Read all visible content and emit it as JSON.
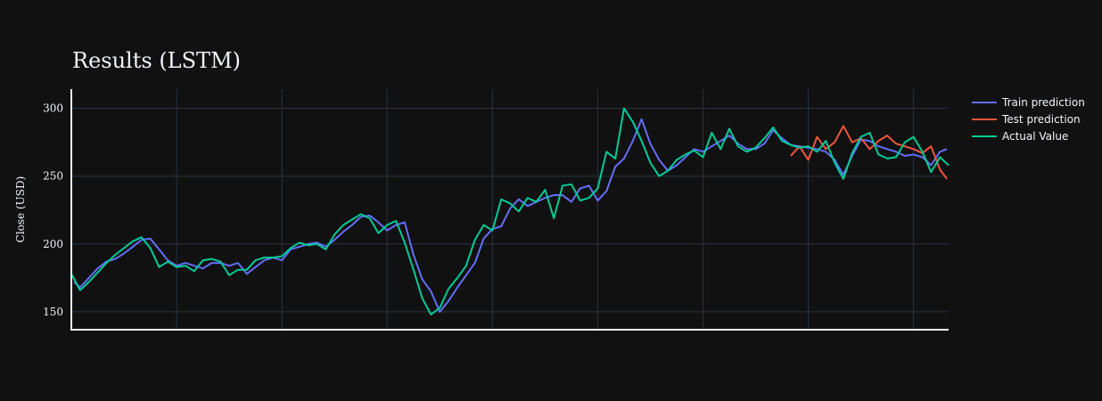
{
  "colors": {
    "background": "#111111",
    "grid": "#283442",
    "axis": "#f2f5fa",
    "train": "#636efa",
    "test": "#EF553B",
    "actual": "#00cc96"
  },
  "chart_data": {
    "type": "line",
    "title": "Results (LSTM)",
    "xlabel": "",
    "ylabel": "Close (USD)",
    "xlim": [
      0,
      100
    ],
    "ylim": [
      136.8,
      314.2
    ],
    "yticks": [
      150,
      200,
      250,
      300
    ],
    "xgrid": [
      12,
      24,
      36,
      48,
      60,
      72,
      84,
      96
    ],
    "grid": true,
    "legend_position": "top-right",
    "series": [
      {
        "name": "Train prediction",
        "color": "#636efa",
        "x": [
          0.3,
          1,
          2,
          3,
          4,
          5,
          6,
          7,
          8,
          9,
          10,
          11,
          12,
          13,
          14,
          15,
          16,
          17,
          18,
          19,
          20,
          21,
          22,
          23,
          24,
          25,
          26,
          27,
          28,
          29,
          30,
          31,
          32,
          33,
          34,
          35,
          36,
          37,
          38,
          39,
          40,
          41,
          42,
          43,
          44,
          45,
          46,
          47,
          48,
          49,
          50,
          51,
          52,
          53,
          54,
          55,
          56,
          57,
          58,
          59,
          60,
          61,
          62,
          63,
          64,
          65,
          66,
          67,
          68,
          69,
          70,
          71,
          72,
          73,
          74,
          75,
          76,
          77,
          78,
          79,
          80,
          81,
          82,
          83,
          84,
          85,
          86,
          87,
          88,
          89,
          90,
          91,
          92,
          93,
          94,
          95,
          96,
          97,
          98,
          99,
          99.8
        ],
        "y": [
          172,
          168,
          175,
          182,
          187,
          189,
          193,
          198,
          203,
          204,
          196,
          188,
          184,
          186,
          184,
          182,
          186,
          186,
          184,
          186,
          178,
          183,
          188,
          190,
          188,
          196,
          198,
          200,
          201,
          198,
          203,
          209,
          214,
          220,
          221,
          216,
          210,
          214,
          216,
          192,
          174,
          165,
          150,
          158,
          168,
          177,
          186,
          204,
          211,
          213,
          226,
          233,
          228,
          231,
          234,
          236,
          236,
          231,
          241,
          243,
          232,
          239,
          257,
          263,
          276,
          292,
          274,
          262,
          254,
          258,
          264,
          270,
          268,
          272,
          276,
          280,
          274,
          270,
          270,
          274,
          284,
          278,
          273,
          272,
          271,
          270,
          268,
          262,
          251,
          265,
          277,
          276,
          272,
          270,
          268,
          265,
          266,
          264,
          258,
          268,
          270
        ]
      },
      {
        "name": "Test prediction",
        "color": "#EF553B",
        "x": [
          82,
          83,
          84,
          85,
          86,
          87,
          88,
          89,
          90,
          91,
          92,
          93,
          94,
          95,
          96,
          97,
          98,
          99,
          99.8
        ],
        "y": [
          265,
          272,
          262,
          279,
          270,
          275,
          287,
          275,
          278,
          270,
          276,
          280,
          274,
          272,
          270,
          267,
          272,
          255,
          248
        ]
      },
      {
        "name": "Actual Value",
        "color": "#00cc96",
        "x": [
          0,
          1,
          2,
          3,
          4,
          5,
          6,
          7,
          8,
          9,
          10,
          11,
          12,
          13,
          14,
          15,
          16,
          17,
          18,
          19,
          20,
          21,
          22,
          23,
          24,
          25,
          26,
          27,
          28,
          29,
          30,
          31,
          32,
          33,
          34,
          35,
          36,
          37,
          38,
          39,
          40,
          41,
          42,
          43,
          44,
          45,
          46,
          47,
          48,
          49,
          50,
          51,
          52,
          53,
          54,
          55,
          56,
          57,
          58,
          59,
          60,
          61,
          62,
          63,
          64,
          65,
          66,
          67,
          68,
          69,
          70,
          71,
          72,
          73,
          74,
          75,
          76,
          77,
          78,
          79,
          80,
          81,
          82,
          83,
          84,
          85,
          86,
          87,
          88,
          89,
          90,
          91,
          92,
          93,
          94,
          95,
          96,
          97,
          98,
          99,
          100
        ],
        "y": [
          178,
          166,
          172,
          179,
          186,
          192,
          197,
          202,
          205,
          197,
          183,
          187,
          183,
          184,
          180,
          188,
          189,
          187,
          177,
          181,
          181,
          188,
          190,
          190,
          191,
          197,
          201,
          199,
          200,
          196,
          207,
          214,
          218,
          222,
          219,
          208,
          214,
          217,
          201,
          181,
          160,
          148,
          153,
          167,
          175,
          184,
          203,
          214,
          210,
          233,
          230,
          224,
          234,
          231,
          240,
          219,
          243,
          244,
          232,
          234,
          241,
          268,
          263,
          300,
          290,
          276,
          260,
          250,
          254,
          262,
          266,
          269,
          264,
          282,
          270,
          285,
          272,
          268,
          271,
          278,
          286,
          276,
          273,
          271,
          272,
          268,
          276,
          260,
          248,
          267,
          279,
          282,
          266,
          263,
          264,
          275,
          279,
          268,
          253,
          264,
          258
        ]
      }
    ]
  }
}
